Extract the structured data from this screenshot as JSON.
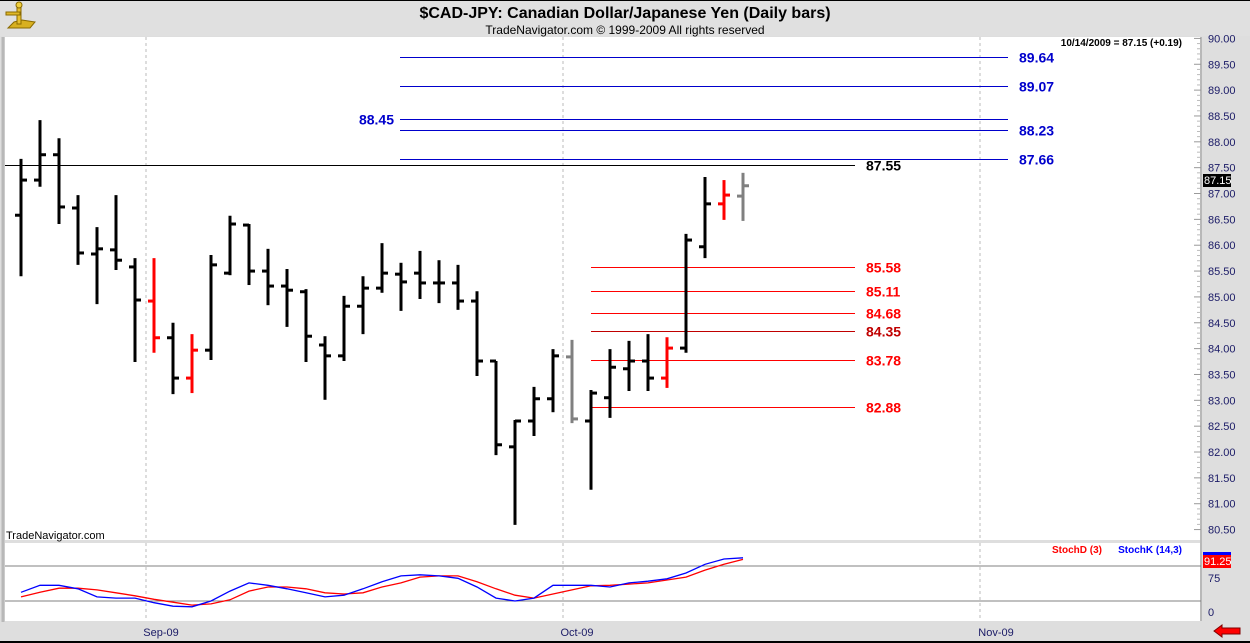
{
  "header": {
    "title": "$CAD-JPY:  Canadian Dollar/Japanese Yen  (Daily bars)",
    "subtitle": "TradeNavigator.com © 1999-2009 All rights reserved"
  },
  "logo": {
    "icon": "sextant-icon"
  },
  "watermark": "TradeNavigator.com",
  "quote": "10/14/2009 = 87.15 (+0.19)",
  "last_price_label": "87.15",
  "stoch_panel": {
    "d_label": "StochD (3)",
    "k_label": "StochK (14,3)",
    "last_value_label": "91.25",
    "axis_labels": {
      "upper": "75",
      "lower": "0"
    }
  },
  "x_axis": {
    "labels": [
      "Sep-09",
      "Oct-09",
      "Nov-09"
    ]
  },
  "nav": {
    "icon": "red-left-arrow-icon"
  },
  "colors": {
    "up_blue": "#0000cc",
    "red": "#ff0000",
    "dark_red": "#c00000",
    "black": "#000000",
    "gray": "#808080",
    "stoch_k": "#0000ff",
    "stoch_d": "#ff0000"
  },
  "chart_data": {
    "type": "ohlc",
    "title": "$CAD-JPY:  Canadian Dollar/Japanese Yen  (Daily bars)",
    "ylim": [
      80.5,
      90.0
    ],
    "y_ticks": [
      "90.00",
      "89.50",
      "89.00",
      "88.50",
      "88.00",
      "87.50",
      "87.00",
      "86.50",
      "86.00",
      "85.50",
      "85.00",
      "84.50",
      "84.00",
      "83.50",
      "83.00",
      "82.50",
      "82.00",
      "81.50",
      "81.00",
      "80.50"
    ],
    "grid": "vertical dashed at month starts",
    "bars": [
      {
        "o": 86.58,
        "h": 87.67,
        "l": 85.4,
        "c": 87.26,
        "color": "black"
      },
      {
        "o": 87.26,
        "h": 88.42,
        "l": 87.13,
        "c": 87.75,
        "color": "black"
      },
      {
        "o": 87.75,
        "h": 88.07,
        "l": 86.41,
        "c": 86.74,
        "color": "black"
      },
      {
        "o": 86.72,
        "h": 86.97,
        "l": 85.62,
        "c": 85.85,
        "color": "black"
      },
      {
        "o": 85.83,
        "h": 86.35,
        "l": 84.86,
        "c": 85.93,
        "color": "black"
      },
      {
        "o": 85.91,
        "h": 86.97,
        "l": 85.52,
        "c": 85.71,
        "color": "black"
      },
      {
        "o": 85.58,
        "h": 85.75,
        "l": 83.74,
        "c": 84.94,
        "color": "black"
      },
      {
        "o": 84.92,
        "h": 85.75,
        "l": 83.92,
        "c": 84.21,
        "color": "red"
      },
      {
        "o": 84.21,
        "h": 84.5,
        "l": 83.12,
        "c": 83.43,
        "color": "black"
      },
      {
        "o": 83.43,
        "h": 84.28,
        "l": 83.14,
        "c": 83.97,
        "color": "red"
      },
      {
        "o": 83.97,
        "h": 85.81,
        "l": 83.78,
        "c": 85.62,
        "color": "black"
      },
      {
        "o": 85.46,
        "h": 86.57,
        "l": 85.42,
        "c": 86.41,
        "color": "black"
      },
      {
        "o": 86.39,
        "h": 86.41,
        "l": 85.23,
        "c": 85.5,
        "color": "black"
      },
      {
        "o": 85.5,
        "h": 85.93,
        "l": 84.84,
        "c": 85.21,
        "color": "black"
      },
      {
        "o": 85.21,
        "h": 85.54,
        "l": 84.42,
        "c": 85.13,
        "color": "black"
      },
      {
        "o": 85.1,
        "h": 85.15,
        "l": 83.74,
        "c": 84.24,
        "color": "black"
      },
      {
        "o": 84.07,
        "h": 84.24,
        "l": 83.01,
        "c": 83.86,
        "color": "black"
      },
      {
        "o": 83.86,
        "h": 85.02,
        "l": 83.76,
        "c": 84.82,
        "color": "black"
      },
      {
        "o": 84.82,
        "h": 85.4,
        "l": 84.28,
        "c": 85.17,
        "color": "black"
      },
      {
        "o": 85.17,
        "h": 86.04,
        "l": 85.08,
        "c": 85.46,
        "color": "black"
      },
      {
        "o": 85.44,
        "h": 85.66,
        "l": 84.73,
        "c": 85.29,
        "color": "black"
      },
      {
        "o": 85.46,
        "h": 85.89,
        "l": 84.96,
        "c": 85.27,
        "color": "black"
      },
      {
        "o": 85.27,
        "h": 85.71,
        "l": 84.88,
        "c": 85.27,
        "color": "black"
      },
      {
        "o": 85.27,
        "h": 85.62,
        "l": 84.75,
        "c": 84.92,
        "color": "black"
      },
      {
        "o": 84.92,
        "h": 85.11,
        "l": 83.47,
        "c": 83.76,
        "color": "black"
      },
      {
        "o": 83.76,
        "h": 83.76,
        "l": 81.94,
        "c": 82.14,
        "color": "black"
      },
      {
        "o": 82.1,
        "h": 82.62,
        "l": 80.59,
        "c": 82.6,
        "color": "black"
      },
      {
        "o": 82.6,
        "h": 83.26,
        "l": 82.31,
        "c": 83.03,
        "color": "black"
      },
      {
        "o": 83.03,
        "h": 83.99,
        "l": 82.77,
        "c": 83.86,
        "color": "black"
      },
      {
        "o": 83.84,
        "h": 84.17,
        "l": 82.56,
        "c": 82.64,
        "color": "gray"
      },
      {
        "o": 82.6,
        "h": 83.2,
        "l": 81.27,
        "c": 83.14,
        "color": "black"
      },
      {
        "o": 83.05,
        "h": 83.99,
        "l": 82.66,
        "c": 83.64,
        "color": "black"
      },
      {
        "o": 83.61,
        "h": 84.15,
        "l": 83.18,
        "c": 83.76,
        "color": "black"
      },
      {
        "o": 83.76,
        "h": 84.28,
        "l": 83.18,
        "c": 83.43,
        "color": "black"
      },
      {
        "o": 83.43,
        "h": 84.22,
        "l": 83.24,
        "c": 84.01,
        "color": "red"
      },
      {
        "o": 84.01,
        "h": 86.22,
        "l": 83.92,
        "c": 86.1,
        "color": "black"
      },
      {
        "o": 85.97,
        "h": 87.32,
        "l": 85.75,
        "c": 86.8,
        "color": "black"
      },
      {
        "o": 86.8,
        "h": 87.26,
        "l": 86.49,
        "c": 86.97,
        "color": "red"
      },
      {
        "o": 86.95,
        "h": 87.4,
        "l": 86.47,
        "c": 87.15,
        "color": "gray"
      }
    ],
    "levels": [
      {
        "value": 89.64,
        "label": "89.64",
        "color": "blue",
        "label_side": "right",
        "span": "upper"
      },
      {
        "value": 89.07,
        "label": "89.07",
        "color": "blue",
        "label_side": "right",
        "span": "upper"
      },
      {
        "value": 88.45,
        "label": "88.45",
        "color": "blue",
        "label_side": "left",
        "span": "upper"
      },
      {
        "value": 88.23,
        "label": "88.23",
        "color": "blue",
        "label_side": "right",
        "span": "upper"
      },
      {
        "value": 87.66,
        "label": "87.66",
        "color": "blue",
        "label_side": "right",
        "span": "upper"
      },
      {
        "value": 87.55,
        "label": "87.55",
        "color": "black",
        "label_side": "right",
        "span": "full"
      },
      {
        "value": 85.58,
        "label": "85.58",
        "color": "red",
        "label_side": "right",
        "span": "lower"
      },
      {
        "value": 85.11,
        "label": "85.11",
        "color": "red",
        "label_side": "right",
        "span": "lower"
      },
      {
        "value": 84.68,
        "label": "84.68",
        "color": "red",
        "label_side": "right",
        "span": "lower"
      },
      {
        "value": 84.35,
        "label": "84.35",
        "color": "dark_red",
        "label_side": "right",
        "span": "lower"
      },
      {
        "value": 83.78,
        "label": "83.78",
        "color": "red",
        "label_side": "right",
        "span": "lower"
      },
      {
        "value": 82.88,
        "label": "82.88",
        "color": "red",
        "label_side": "right",
        "span": "lower"
      }
    ],
    "stochastic": {
      "ylim": [
        0,
        100
      ],
      "guide_lines": [
        80,
        20
      ],
      "k": [
        35,
        47,
        47,
        41,
        27,
        25,
        25,
        17,
        11,
        10,
        20,
        37,
        51,
        47,
        41,
        34,
        27,
        30,
        41,
        53,
        63,
        65,
        63,
        59,
        44,
        25,
        20,
        25,
        47,
        47,
        47,
        44,
        51,
        54,
        58,
        68,
        83,
        92,
        94
      ],
      "d": [
        27,
        35,
        42,
        42,
        39,
        34,
        29,
        23,
        18,
        13,
        15,
        22,
        37,
        44,
        44,
        41,
        34,
        32,
        34,
        44,
        51,
        61,
        63,
        63,
        53,
        41,
        30,
        25,
        32,
        39,
        46,
        47,
        49,
        51,
        56,
        61,
        73,
        83,
        91.25
      ]
    }
  }
}
